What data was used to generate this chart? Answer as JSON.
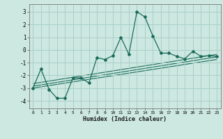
{
  "xlabel": "Humidex (Indice chaleur)",
  "bg_color": "#cce8e0",
  "grid_color": "#aacfc8",
  "line_color": "#1a6b5a",
  "xlim": [
    -0.5,
    23.5
  ],
  "ylim": [
    -4.6,
    3.6
  ],
  "yticks": [
    -4,
    -3,
    -2,
    -1,
    0,
    1,
    2,
    3
  ],
  "xticks": [
    0,
    1,
    2,
    3,
    4,
    5,
    6,
    7,
    8,
    9,
    10,
    11,
    12,
    13,
    14,
    15,
    16,
    17,
    18,
    19,
    20,
    21,
    22,
    23
  ],
  "main_line_x": [
    0,
    1,
    2,
    3,
    4,
    5,
    6,
    7,
    8,
    9,
    10,
    11,
    12,
    13,
    14,
    15,
    16,
    17,
    18,
    19,
    20,
    21,
    22,
    23
  ],
  "main_line_y": [
    -3.0,
    -1.5,
    -3.1,
    -3.8,
    -3.8,
    -2.2,
    -2.2,
    -2.6,
    -0.6,
    -0.75,
    -0.45,
    1.0,
    -0.35,
    3.0,
    2.6,
    1.1,
    -0.25,
    -0.25,
    -0.5,
    -0.7,
    -0.1,
    -0.5,
    -0.45,
    -0.5
  ],
  "reg_line1_x": [
    0,
    23
  ],
  "reg_line1_y": [
    -2.85,
    -0.55
  ],
  "reg_line2_x": [
    0,
    23
  ],
  "reg_line2_y": [
    -2.65,
    -0.35
  ],
  "reg_line3_x": [
    0,
    23
  ],
  "reg_line3_y": [
    -3.0,
    -0.75
  ]
}
